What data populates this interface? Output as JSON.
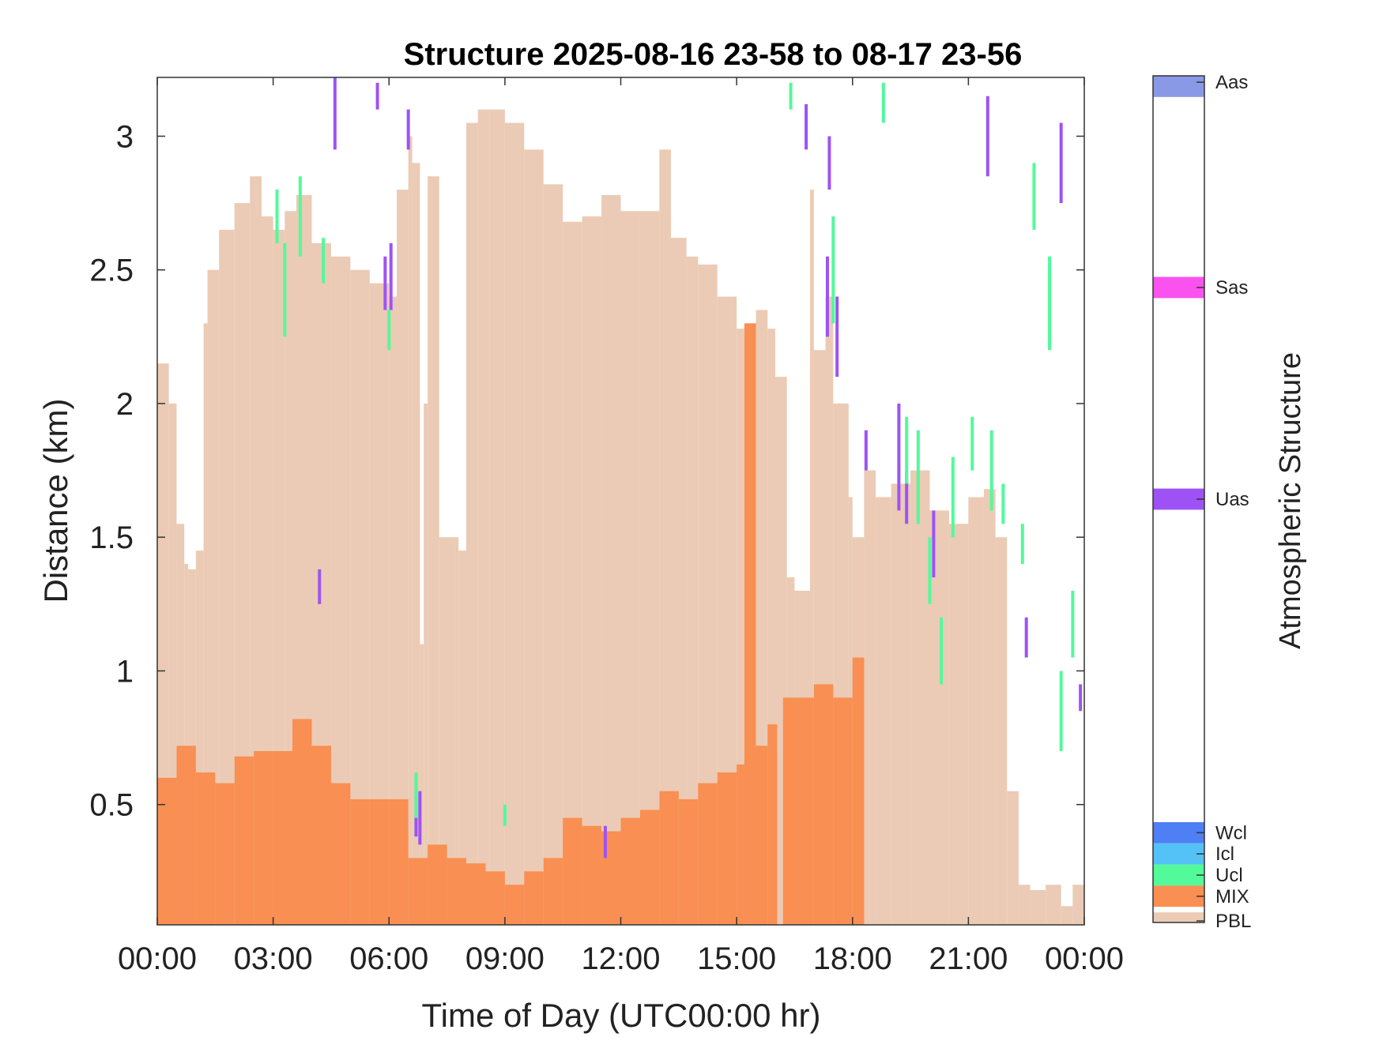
{
  "chart_data": {
    "type": "area",
    "title": "Structure 2025-08-16 23-58 to 08-17 23-56",
    "xlabel": "Time of Day (UTC00:00 hr)",
    "ylabel": "Distance (km)",
    "xlim_hours": [
      0,
      24
    ],
    "ylim_km": [
      0.05,
      3.22
    ],
    "x_ticks": [
      {
        "hour": 0,
        "label": "00:00"
      },
      {
        "hour": 3,
        "label": "03:00"
      },
      {
        "hour": 6,
        "label": "06:00"
      },
      {
        "hour": 9,
        "label": "09:00"
      },
      {
        "hour": 12,
        "label": "12:00"
      },
      {
        "hour": 15,
        "label": "15:00"
      },
      {
        "hour": 18,
        "label": "18:00"
      },
      {
        "hour": 21,
        "label": "21:00"
      },
      {
        "hour": 24,
        "label": "00:00"
      }
    ],
    "y_ticks": [
      {
        "value": 0.5,
        "label": "0.5"
      },
      {
        "value": 1,
        "label": "1"
      },
      {
        "value": 1.5,
        "label": "1.5"
      },
      {
        "value": 2,
        "label": "2"
      },
      {
        "value": 2.5,
        "label": "2.5"
      },
      {
        "value": 3,
        "label": "3"
      }
    ],
    "series": [
      {
        "name": "PBL",
        "color": "#ebcbb5",
        "hours": [
          0,
          0.3,
          0.5,
          0.7,
          0.8,
          1.0,
          1.2,
          1.3,
          1.6,
          2.0,
          2.4,
          2.7,
          3.0,
          3.3,
          3.6,
          4.0,
          4.5,
          5.0,
          5.5,
          6.0,
          6.2,
          6.5,
          6.6,
          6.8,
          6.9,
          7.0,
          7.3,
          7.7,
          7.8,
          8.0,
          8.3,
          8.6,
          9.0,
          9.5,
          10.0,
          10.5,
          11.0,
          11.5,
          12.0,
          12.5,
          13.0,
          13.3,
          13.7,
          14.0,
          14.5,
          15.0,
          15.2,
          15.5,
          15.8,
          16.0,
          16.3,
          16.5,
          16.9,
          17.0,
          17.3,
          17.5,
          17.9,
          18.0,
          18.3,
          18.6,
          19.0,
          19.5,
          20.0,
          20.5,
          21.0,
          21.4,
          21.7,
          22.0,
          22.3,
          22.6,
          23.0,
          23.4,
          23.7,
          24.0
        ],
        "top_km": [
          2.15,
          2.0,
          1.55,
          1.4,
          1.38,
          1.45,
          2.3,
          2.5,
          2.65,
          2.75,
          2.85,
          2.7,
          2.65,
          2.72,
          2.78,
          2.6,
          2.55,
          2.5,
          2.45,
          2.4,
          2.8,
          3.0,
          2.9,
          1.1,
          2.0,
          2.85,
          1.5,
          1.5,
          1.45,
          3.05,
          3.1,
          3.1,
          3.05,
          2.95,
          2.82,
          2.68,
          2.7,
          2.78,
          2.72,
          2.72,
          2.95,
          2.62,
          2.55,
          2.52,
          2.4,
          2.28,
          2.3,
          2.35,
          2.28,
          2.1,
          1.35,
          1.3,
          2.8,
          2.2,
          2.4,
          2.0,
          1.65,
          1.5,
          1.75,
          1.65,
          1.7,
          1.75,
          1.6,
          1.55,
          1.65,
          1.68,
          1.5,
          0.55,
          0.2,
          0.18,
          0.2,
          0.12,
          0.2,
          0.2
        ]
      },
      {
        "name": "MIX",
        "color": "#f98f52",
        "hours": [
          0,
          0.5,
          1.0,
          1.5,
          2.0,
          2.5,
          3.0,
          3.5,
          4.0,
          4.5,
          5.0,
          5.5,
          6.0,
          6.5,
          7.0,
          7.5,
          8.0,
          8.5,
          9.0,
          9.5,
          10.0,
          10.5,
          11.0,
          11.5,
          12.0,
          12.5,
          13.0,
          13.5,
          14.0,
          14.5,
          15.0,
          15.2,
          15.5,
          15.8,
          16.05,
          16.2,
          16.5,
          17.0,
          17.5,
          18.0,
          18.3,
          18.5,
          19.0,
          19.5,
          20.0,
          20.5,
          21.0,
          21.5,
          22.0,
          22.3,
          24.0
        ],
        "top_km": [
          0.6,
          0.72,
          0.62,
          0.58,
          0.68,
          0.7,
          0.7,
          0.82,
          0.72,
          0.58,
          0.52,
          0.52,
          0.52,
          0.3,
          0.35,
          0.3,
          0.28,
          0.25,
          0.2,
          0.25,
          0.3,
          0.45,
          0.42,
          0.4,
          0.45,
          0.48,
          0.55,
          0.52,
          0.58,
          0.62,
          0.65,
          2.3,
          0.72,
          0.8,
          0.05,
          0.9,
          0.9,
          0.95,
          0.9,
          1.05,
          0.05,
          0.05,
          0.05,
          0.05,
          0.05,
          0.05,
          0.05,
          0.05,
          0.05,
          0.05,
          0.05
        ]
      }
    ],
    "scatter_markers": {
      "Uas": [
        [
          4.6,
          2.95,
          3.22
        ],
        [
          5.7,
          3.1,
          3.2
        ],
        [
          6.5,
          2.95,
          3.1
        ],
        [
          4.2,
          1.25,
          1.38
        ],
        [
          5.9,
          2.35,
          2.55
        ],
        [
          6.05,
          2.35,
          2.6
        ],
        [
          6.7,
          0.38,
          0.58
        ],
        [
          6.8,
          0.35,
          0.55
        ],
        [
          11.6,
          0.3,
          0.42
        ],
        [
          16.8,
          2.95,
          3.12
        ],
        [
          17.4,
          2.8,
          3.0
        ],
        [
          17.35,
          2.25,
          2.55
        ],
        [
          17.6,
          2.1,
          2.4
        ],
        [
          18.35,
          1.75,
          1.9
        ],
        [
          19.2,
          1.6,
          2.0
        ],
        [
          19.4,
          1.55,
          1.75
        ],
        [
          20.1,
          1.35,
          1.6
        ],
        [
          21.5,
          2.85,
          3.15
        ],
        [
          22.5,
          1.05,
          1.2
        ],
        [
          23.4,
          2.75,
          3.05
        ],
        [
          23.9,
          0.85,
          0.95
        ]
      ],
      "Ucl": [
        [
          3.1,
          2.6,
          2.8
        ],
        [
          3.3,
          2.25,
          2.6
        ],
        [
          3.7,
          2.55,
          2.85
        ],
        [
          4.3,
          2.45,
          2.62
        ],
        [
          6.0,
          2.2,
          2.35
        ],
        [
          6.7,
          0.45,
          0.62
        ],
        [
          9.0,
          0.42,
          0.5
        ],
        [
          16.4,
          3.1,
          3.2
        ],
        [
          17.5,
          2.3,
          2.7
        ],
        [
          18.8,
          3.05,
          3.2
        ],
        [
          19.4,
          1.7,
          1.95
        ],
        [
          19.7,
          1.55,
          1.9
        ],
        [
          20.0,
          1.25,
          1.5
        ],
        [
          20.3,
          0.95,
          1.2
        ],
        [
          20.6,
          1.5,
          1.8
        ],
        [
          21.1,
          1.75,
          1.95
        ],
        [
          21.6,
          1.6,
          1.9
        ],
        [
          21.9,
          1.55,
          1.7
        ],
        [
          22.4,
          1.4,
          1.55
        ],
        [
          22.7,
          2.65,
          2.9
        ],
        [
          23.1,
          2.2,
          2.55
        ],
        [
          23.4,
          0.7,
          1.0
        ],
        [
          23.7,
          1.05,
          1.3
        ]
      ]
    },
    "colorbar": {
      "label": "Atmospheric Structure",
      "categories": [
        {
          "name": "Aas",
          "color": "#8a99e6"
        },
        {
          "name": "Sas",
          "color": "#fa52ee"
        },
        {
          "name": "Uas",
          "color": "#9e52f5"
        },
        {
          "name": "Wcl",
          "color": "#4f7ff5"
        },
        {
          "name": "Icl",
          "color": "#55c2f7"
        },
        {
          "name": "Ucl",
          "color": "#52fa9a"
        },
        {
          "name": "MIX",
          "color": "#f98f52"
        },
        {
          "name": "PBL",
          "color": "#ebcbb5"
        }
      ]
    }
  }
}
